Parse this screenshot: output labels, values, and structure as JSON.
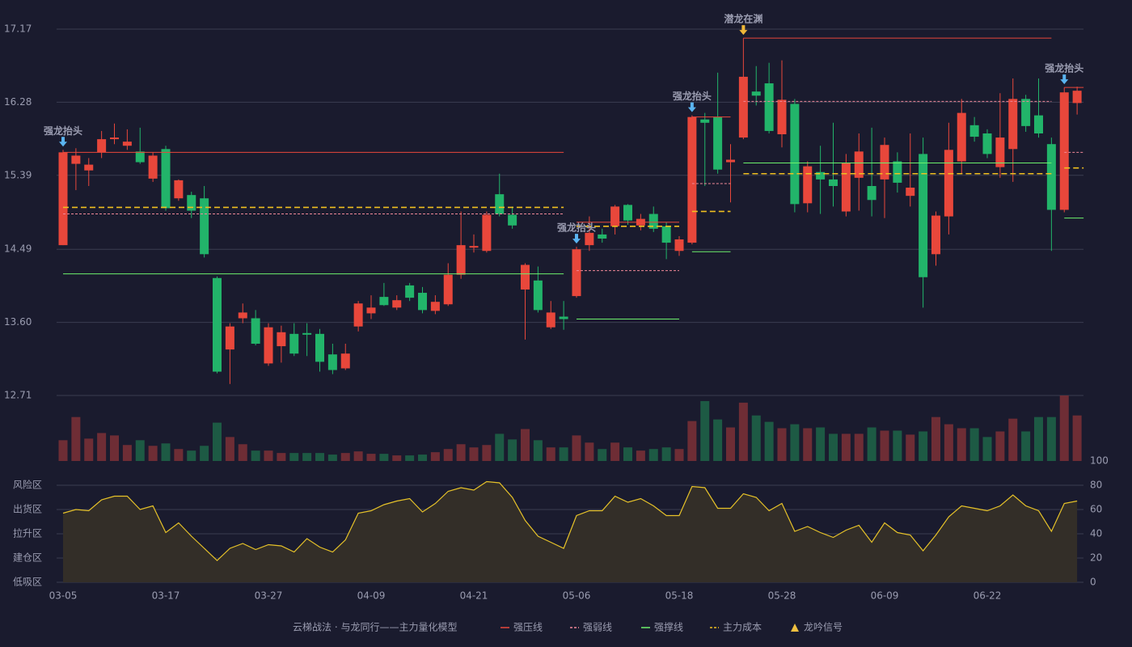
{
  "chart_data": [
    {
      "type": "candlestick",
      "categories": [
        "03-05",
        null,
        null,
        null,
        null,
        null,
        null,
        null,
        "03-17",
        null,
        null,
        null,
        null,
        null,
        null,
        null,
        "03-27",
        null,
        null,
        null,
        null,
        null,
        null,
        null,
        "04-09",
        null,
        null,
        null,
        null,
        null,
        null,
        null,
        "04-21",
        null,
        null,
        null,
        null,
        null,
        null,
        null,
        "05-06",
        null,
        null,
        null,
        null,
        null,
        null,
        null,
        "05-18",
        null,
        null,
        null,
        null,
        null,
        null,
        null,
        "05-28",
        null,
        null,
        null,
        null,
        null,
        null,
        null,
        "06-09",
        null,
        null,
        null,
        null,
        null,
        null,
        null,
        "06-22",
        null,
        null,
        null,
        null,
        null,
        null,
        null
      ],
      "open": [
        14.54,
        15.53,
        15.45,
        15.67,
        15.83,
        15.75,
        15.68,
        15.35,
        15.71,
        15.11,
        15.15,
        15.11,
        14.14,
        13.27,
        13.65,
        13.65,
        13.1,
        13.31,
        13.46,
        13.47,
        13.46,
        13.21,
        13.04,
        13.55,
        13.71,
        13.91,
        13.78,
        14.05,
        13.96,
        13.74,
        13.82,
        14.18,
        14.51,
        14.47,
        15.16,
        14.91,
        14.0,
        14.11,
        13.54,
        13.67,
        13.92,
        14.54,
        14.67,
        14.77,
        15.03,
        14.78,
        14.92,
        14.77,
        14.47,
        14.57,
        16.07,
        16.1,
        15.55,
        15.85,
        16.41,
        16.51,
        15.89,
        16.26,
        15.05,
        15.43,
        15.34,
        14.95,
        15.36,
        15.26,
        15.34,
        15.56,
        15.14,
        15.65,
        14.43,
        14.89,
        15.56,
        16.0,
        15.9,
        15.49,
        15.71,
        16.32,
        16.12,
        15.77,
        14.97,
        16.27
      ],
      "high": [
        15.7,
        15.72,
        15.6,
        15.93,
        16.02,
        15.95,
        15.97,
        15.67,
        15.75,
        15.34,
        15.19,
        15.26,
        14.16,
        13.59,
        13.83,
        13.75,
        13.59,
        13.56,
        13.59,
        13.59,
        13.52,
        13.34,
        13.34,
        13.86,
        13.93,
        14.08,
        13.93,
        14.08,
        14.03,
        13.93,
        14.32,
        14.95,
        14.67,
        14.95,
        15.41,
        15.01,
        14.32,
        14.28,
        13.86,
        13.86,
        14.52,
        14.89,
        14.74,
        15.03,
        15.04,
        14.92,
        15.01,
        14.82,
        14.65,
        16.12,
        16.15,
        16.64,
        15.77,
        17.06,
        16.72,
        16.76,
        16.79,
        16.32,
        15.56,
        15.75,
        16.03,
        15.65,
        15.9,
        15.97,
        15.85,
        15.67,
        15.9,
        15.85,
        14.95,
        16.03,
        16.32,
        16.1,
        15.95,
        16.39,
        16.57,
        16.37,
        16.57,
        15.85,
        16.46,
        16.47
      ],
      "low": [
        14.54,
        15.21,
        15.26,
        15.6,
        15.77,
        15.7,
        15.53,
        15.31,
        14.96,
        15.08,
        14.87,
        14.39,
        12.98,
        12.85,
        13.59,
        13.32,
        13.07,
        13.11,
        13.19,
        13.19,
        13.0,
        12.97,
        13.02,
        13.49,
        13.64,
        13.8,
        13.75,
        13.86,
        13.71,
        13.7,
        13.8,
        14.13,
        14.45,
        14.45,
        14.89,
        14.74,
        13.39,
        13.72,
        13.52,
        13.51,
        13.9,
        14.47,
        14.57,
        14.67,
        14.79,
        14.72,
        14.7,
        14.37,
        14.41,
        14.55,
        15.26,
        15.41,
        15.06,
        15.83,
        16.24,
        15.9,
        15.73,
        14.94,
        14.94,
        14.92,
        15.01,
        14.89,
        14.96,
        14.89,
        14.87,
        15.18,
        15.01,
        13.78,
        14.29,
        14.67,
        15.41,
        15.8,
        15.6,
        15.36,
        15.31,
        15.92,
        15.85,
        14.47,
        14.94,
        16.13
      ],
      "close": [
        15.67,
        15.63,
        15.52,
        15.83,
        15.85,
        15.8,
        15.55,
        15.63,
        14.99,
        15.33,
        14.96,
        14.43,
        13.0,
        13.55,
        13.72,
        13.34,
        13.54,
        13.48,
        13.22,
        13.45,
        13.12,
        13.02,
        13.22,
        13.83,
        13.78,
        13.81,
        13.87,
        13.9,
        13.75,
        13.85,
        14.18,
        14.54,
        14.53,
        14.91,
        14.92,
        14.78,
        14.3,
        13.75,
        13.72,
        13.64,
        14.49,
        14.69,
        14.62,
        15.01,
        14.84,
        14.86,
        14.74,
        14.57,
        14.61,
        16.1,
        16.03,
        15.46,
        15.58,
        16.59,
        16.36,
        15.93,
        16.31,
        15.04,
        15.5,
        15.34,
        15.26,
        15.54,
        15.68,
        15.09,
        15.76,
        15.3,
        15.24,
        14.15,
        14.9,
        15.7,
        16.15,
        15.86,
        15.65,
        15.85,
        16.32,
        15.99,
        15.9,
        14.97,
        16.4,
        16.42
      ],
      "up_color": "#e8473b",
      "down_color": "#22b46a",
      "ylim": [
        12.71,
        17.17
      ],
      "yticks": [
        12.71,
        {
          "value": 13.6,
          "label": "13.60"
        },
        14.49,
        15.39,
        16.28,
        17.17
      ],
      "grid": true,
      "levels": [
        {
          "name": "强压线",
          "color": "#e8473b",
          "dashed": false,
          "segments": [
            {
              "from": 0,
              "to": 39,
              "value": 15.67
            },
            {
              "from": 40,
              "to": 48,
              "value": 14.82
            },
            {
              "from": 49,
              "to": 52,
              "value": 16.1
            },
            {
              "from": 53,
              "to": 77,
              "value": 17.06
            },
            {
              "from": 78,
              "to": 79,
              "value": 16.46
            }
          ]
        },
        {
          "name": "强弱线",
          "color": "#f08898",
          "dashed": true,
          "segments": [
            {
              "from": 0,
              "to": 39,
              "value": 14.92
            },
            {
              "from": 40,
              "to": 48,
              "value": 14.23
            },
            {
              "from": 49,
              "to": 52,
              "value": 15.29
            },
            {
              "from": 53,
              "to": 77,
              "value": 16.29
            },
            {
              "from": 78,
              "to": 79,
              "value": 15.67
            }
          ]
        },
        {
          "name": "强撑线",
          "color": "#6cf06c",
          "dashed": false,
          "segments": [
            {
              "from": 0,
              "to": 39,
              "value": 14.19
            },
            {
              "from": 40,
              "to": 48,
              "value": 13.64
            },
            {
              "from": 49,
              "to": 52,
              "value": 14.46
            },
            {
              "from": 53,
              "to": 77,
              "value": 15.54
            },
            {
              "from": 78,
              "to": 79,
              "value": 14.87
            }
          ]
        },
        {
          "name": "主力成本",
          "color": "#f0c020",
          "dashed": true,
          "segments": [
            {
              "from": 0,
              "to": 39,
              "value": 15.0
            },
            {
              "from": 40,
              "to": 48,
              "value": 14.77
            },
            {
              "from": 49,
              "to": 52,
              "value": 14.95
            },
            {
              "from": 53,
              "to": 77,
              "value": 15.41
            },
            {
              "from": 78,
              "to": 79,
              "value": 15.48
            }
          ]
        }
      ],
      "signals": [
        {
          "label": "强龙抬头",
          "index": 0,
          "color": "#5ab4f0"
        },
        {
          "label": "强龙抬头",
          "index": 40,
          "color": "#5ab4f0"
        },
        {
          "label": "强龙抬头",
          "index": 49,
          "color": "#5ab4f0"
        },
        {
          "label": "潜龙在渊",
          "index": 53,
          "color": "#f0b838"
        },
        {
          "label": "强龙抬头",
          "index": 78,
          "color": "#5ab4f0"
        }
      ],
      "signal_legend": {
        "name": "龙吟信号",
        "color": "#f0c040"
      },
      "legend_title": "云梯战法 · 与龙同行——主力量化模型"
    },
    {
      "type": "bar",
      "values": [
        26,
        55,
        28,
        35,
        32,
        20,
        26,
        19,
        22,
        15,
        13,
        19,
        48,
        30,
        21,
        13,
        13,
        10,
        10,
        10,
        10,
        8,
        10,
        12,
        9,
        9,
        7,
        7,
        8,
        11,
        15,
        21,
        17,
        20,
        34,
        27,
        40,
        26,
        17,
        17,
        32,
        23,
        15,
        23,
        17,
        13,
        15,
        17,
        15,
        50,
        75,
        52,
        42,
        73,
        57,
        49,
        41,
        46,
        41,
        42,
        34,
        34,
        34,
        42,
        38,
        38,
        33,
        37,
        55,
        46,
        41,
        41,
        30,
        37,
        53,
        37,
        55,
        55,
        82,
        57
      ],
      "up_color": "#6e2d35",
      "down_color": "#1d5a44",
      "ylim": [
        0,
        82
      ]
    },
    {
      "type": "line",
      "values": [
        57,
        60,
        59,
        68,
        71,
        71,
        60,
        63,
        41,
        49,
        38,
        28,
        18,
        28,
        32,
        27,
        31,
        30,
        25,
        36,
        29,
        25,
        35,
        57,
        59,
        64,
        67,
        69,
        58,
        65,
        75,
        78,
        76,
        83,
        82,
        70,
        51,
        38,
        33,
        28,
        55,
        59,
        59,
        71,
        66,
        69,
        63,
        55,
        55,
        79,
        78,
        61,
        61,
        73,
        70,
        59,
        65,
        42,
        46,
        41,
        37,
        43,
        47,
        33,
        49,
        41,
        39,
        26,
        39,
        54,
        63,
        61,
        59,
        63,
        72,
        63,
        59,
        42,
        65,
        67
      ],
      "color": "#e6c229",
      "fill": "#332e28",
      "ylim": [
        0,
        100
      ],
      "yticks": [
        0,
        20,
        40,
        60,
        80,
        100
      ],
      "ytick_colors": [
        "#e84848",
        "#e84848",
        "#4a90e2",
        "#e040e0",
        "#e8a33a",
        "#3ce05a"
      ],
      "zones": [
        {
          "label": "风险区",
          "color": "#e8a33a"
        },
        {
          "label": "出货区",
          "color": "#e040e0"
        },
        {
          "label": "拉升区",
          "color": "#4a90e2"
        },
        {
          "label": "建仓区",
          "color": "#e84848"
        },
        {
          "label": "低吸区",
          "color": "#e84848"
        }
      ],
      "grid": true
    }
  ]
}
